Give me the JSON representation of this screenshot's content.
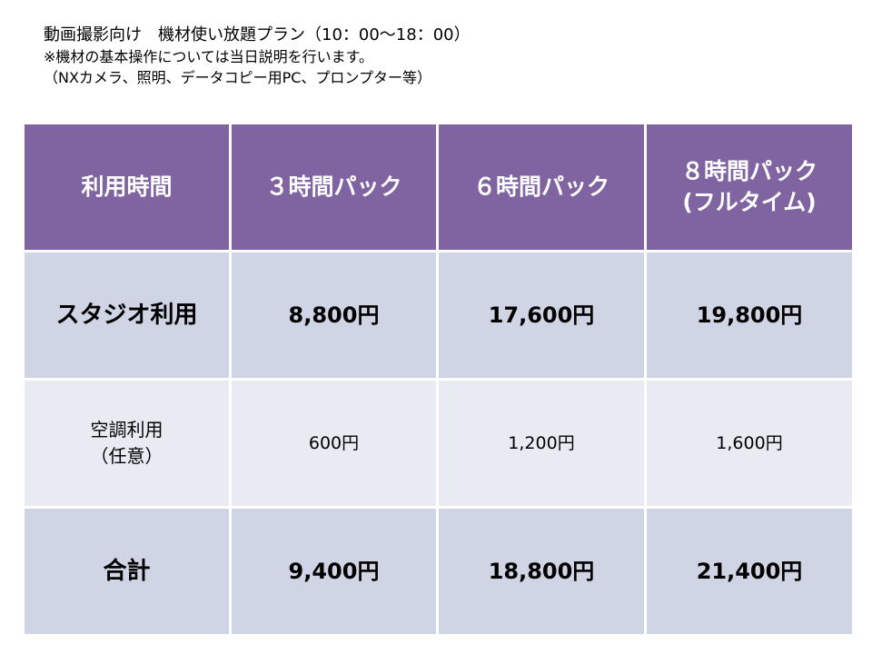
{
  "intro": {
    "title": "動画撮影向け　機材使い放題プラン（10：00〜18：00）",
    "note": "※機材の基本操作については当日説明を行います。",
    "equipment": "（NXカメラ、照明、データコピー用PC、プロンプター等）"
  },
  "table": {
    "headers": {
      "label": "利用時間",
      "pack3": "３時間パック",
      "pack6": "６時間パック",
      "pack8_line1": "８時間パック",
      "pack8_line2": "(フルタイム)"
    },
    "rows": [
      {
        "label": "スタジオ利用",
        "pack3": "8,800円",
        "pack6": "17,600円",
        "pack8": "19,800円"
      },
      {
        "label_line1": "空調利用",
        "label_line2": "（任意）",
        "pack3": "600円",
        "pack6": "1,200円",
        "pack8": "1,600円"
      },
      {
        "label": "合計",
        "pack3": "9,400円",
        "pack6": "18,800円",
        "pack8": "21,400円"
      }
    ]
  },
  "colors": {
    "header_bg": "#8064a2",
    "row_dark_bg": "#cfd5e4",
    "row_light_bg": "#e8ebf2"
  }
}
